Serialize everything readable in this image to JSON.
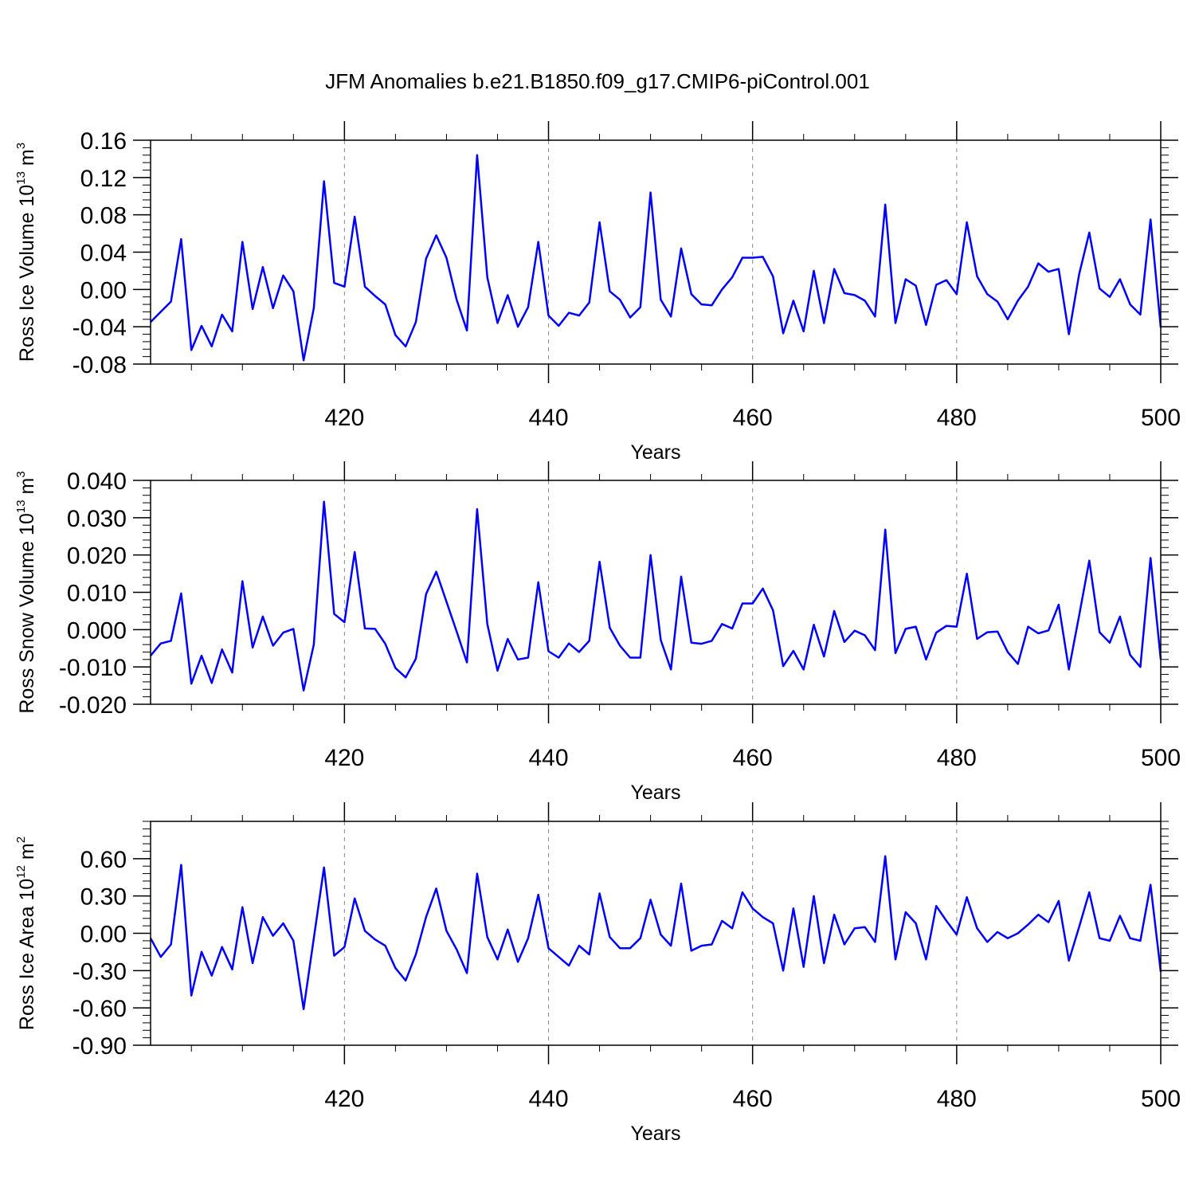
{
  "title": "JFM Anomalies b.e21.B1850.f09_g17.CMIP6-piControl.001",
  "colors": {
    "line": "#0000ff",
    "axis": "#000000",
    "grid": "#888888"
  },
  "chart_data": [
    {
      "type": "line",
      "ylabel": {
        "main": "Ross Ice Volume 10",
        "sup": "13",
        "unit": " m",
        "unit_sup": "3"
      },
      "xlabel": "Years",
      "xlim": [
        401,
        500
      ],
      "ylim": [
        -0.08,
        0.16
      ],
      "yticks": [
        -0.08,
        -0.04,
        0.0,
        0.04,
        0.08,
        0.12,
        0.16
      ],
      "ytick_labels": [
        "-0.08",
        "-0.04",
        "0.00",
        "0.04",
        "0.08",
        "0.12",
        "0.16"
      ],
      "xticks": [
        420,
        440,
        460,
        480,
        500
      ],
      "xtick_labels": [
        "420",
        "440",
        "460",
        "480",
        "500"
      ],
      "x": [
        401,
        402,
        403,
        404,
        405,
        406,
        407,
        408,
        409,
        410,
        411,
        412,
        413,
        414,
        415,
        416,
        417,
        418,
        419,
        420,
        421,
        422,
        423,
        424,
        425,
        426,
        427,
        428,
        429,
        430,
        431,
        432,
        433,
        434,
        435,
        436,
        437,
        438,
        439,
        440,
        441,
        442,
        443,
        444,
        445,
        446,
        447,
        448,
        449,
        450,
        451,
        452,
        453,
        454,
        455,
        456,
        457,
        458,
        459,
        460,
        461,
        462,
        463,
        464,
        465,
        466,
        467,
        468,
        469,
        470,
        471,
        472,
        473,
        474,
        475,
        476,
        477,
        478,
        479,
        480,
        481,
        482,
        483,
        484,
        485,
        486,
        487,
        488,
        489,
        490,
        491,
        492,
        493,
        494,
        495,
        496,
        497,
        498,
        499,
        500
      ],
      "values": [
        -0.035,
        -0.024,
        -0.013,
        0.054,
        -0.065,
        -0.039,
        -0.061,
        -0.027,
        -0.045,
        0.051,
        -0.021,
        0.024,
        -0.02,
        0.015,
        -0.002,
        -0.076,
        -0.02,
        0.116,
        0.007,
        0.003,
        0.078,
        0.003,
        -0.007,
        -0.016,
        -0.049,
        -0.061,
        -0.035,
        0.033,
        0.058,
        0.034,
        -0.011,
        -0.044,
        0.144,
        0.013,
        -0.036,
        -0.006,
        -0.04,
        -0.019,
        0.051,
        -0.028,
        -0.039,
        -0.025,
        -0.028,
        -0.014,
        0.072,
        -0.002,
        -0.011,
        -0.03,
        -0.019,
        0.104,
        -0.011,
        -0.029,
        0.044,
        -0.005,
        -0.016,
        -0.017,
        0.0,
        0.013,
        0.034,
        0.034,
        0.035,
        0.014,
        -0.047,
        -0.012,
        -0.045,
        0.02,
        -0.036,
        0.022,
        -0.004,
        -0.006,
        -0.012,
        -0.029,
        0.091,
        -0.036,
        0.011,
        0.004,
        -0.038,
        0.005,
        0.01,
        -0.005,
        0.072,
        0.014,
        -0.005,
        -0.013,
        -0.032,
        -0.012,
        0.003,
        0.028,
        0.019,
        0.022,
        -0.048,
        0.016,
        0.061,
        0.001,
        -0.008,
        0.011,
        -0.016,
        -0.027,
        0.075,
        -0.041
      ]
    },
    {
      "type": "line",
      "ylabel": {
        "main": "Ross Snow Volume 10",
        "sup": "13",
        "unit": " m",
        "unit_sup": "3"
      },
      "xlabel": "Years",
      "xlim": [
        401,
        500
      ],
      "ylim": [
        -0.02,
        0.04
      ],
      "yticks": [
        -0.02,
        -0.01,
        0.0,
        0.01,
        0.02,
        0.03,
        0.04
      ],
      "ytick_labels": [
        "-0.020",
        "-0.010",
        "0.000",
        "0.010",
        "0.020",
        "0.030",
        "0.040"
      ],
      "xticks": [
        420,
        440,
        460,
        480,
        500
      ],
      "xtick_labels": [
        "420",
        "440",
        "460",
        "480",
        "500"
      ],
      "x": [
        401,
        402,
        403,
        404,
        405,
        406,
        407,
        408,
        409,
        410,
        411,
        412,
        413,
        414,
        415,
        416,
        417,
        418,
        419,
        420,
        421,
        422,
        423,
        424,
        425,
        426,
        427,
        428,
        429,
        430,
        431,
        432,
        433,
        434,
        435,
        436,
        437,
        438,
        439,
        440,
        441,
        442,
        443,
        444,
        445,
        446,
        447,
        448,
        449,
        450,
        451,
        452,
        453,
        454,
        455,
        456,
        457,
        458,
        459,
        460,
        461,
        462,
        463,
        464,
        465,
        466,
        467,
        468,
        469,
        470,
        471,
        472,
        473,
        474,
        475,
        476,
        477,
        478,
        479,
        480,
        481,
        482,
        483,
        484,
        485,
        486,
        487,
        488,
        489,
        490,
        491,
        492,
        493,
        494,
        495,
        496,
        497,
        498,
        499,
        500
      ],
      "values": [
        -0.007,
        -0.0037,
        -0.003,
        0.0097,
        -0.0145,
        -0.007,
        -0.0143,
        -0.0053,
        -0.0115,
        0.013,
        -0.0048,
        0.0035,
        -0.0043,
        -0.0008,
        0.0002,
        -0.0163,
        -0.004,
        0.0343,
        0.0042,
        0.002,
        0.0208,
        0.0003,
        0.0002,
        -0.0038,
        -0.0103,
        -0.0128,
        -0.0078,
        0.0095,
        0.0155,
        0.0075,
        -0.0005,
        -0.0088,
        0.0323,
        0.0015,
        -0.011,
        -0.0025,
        -0.008,
        -0.0075,
        0.0127,
        -0.0058,
        -0.0075,
        -0.0037,
        -0.006,
        -0.003,
        0.0182,
        0.0005,
        -0.0043,
        -0.0075,
        -0.0075,
        0.02,
        -0.0028,
        -0.0107,
        0.0142,
        -0.0035,
        -0.0038,
        -0.003,
        0.0015,
        0.0003,
        0.007,
        0.007,
        0.011,
        0.0052,
        -0.0098,
        -0.0057,
        -0.0107,
        0.0013,
        -0.0072,
        0.005,
        -0.0033,
        -0.0003,
        -0.0015,
        -0.0055,
        0.0268,
        -0.0063,
        0.0002,
        0.0008,
        -0.008,
        -0.0008,
        0.001,
        0.0008,
        0.015,
        -0.0025,
        -0.0007,
        -0.0005,
        -0.006,
        -0.0092,
        0.0008,
        -0.001,
        -0.0002,
        0.0067,
        -0.0107,
        0.0037,
        0.0185,
        -0.0007,
        -0.0035,
        0.0035,
        -0.0068,
        -0.01,
        0.0192,
        -0.008
      ]
    },
    {
      "type": "line",
      "ylabel": {
        "main": "Ross Ice Area 10",
        "sup": "12",
        "unit": " m",
        "unit_sup": "2"
      },
      "xlabel": "Years",
      "xlim": [
        401,
        500
      ],
      "ylim": [
        -0.9,
        0.9
      ],
      "yticks": [
        -0.9,
        -0.6,
        -0.3,
        0.0,
        0.3,
        0.6
      ],
      "ytick_labels": [
        "-0.90",
        "-0.60",
        "-0.30",
        "0.00",
        "0.30",
        "0.60"
      ],
      "xticks": [
        420,
        440,
        460,
        480,
        500
      ],
      "xtick_labels": [
        "420",
        "440",
        "460",
        "480",
        "500"
      ],
      "x": [
        401,
        402,
        403,
        404,
        405,
        406,
        407,
        408,
        409,
        410,
        411,
        412,
        413,
        414,
        415,
        416,
        417,
        418,
        419,
        420,
        421,
        422,
        423,
        424,
        425,
        426,
        427,
        428,
        429,
        430,
        431,
        432,
        433,
        434,
        435,
        436,
        437,
        438,
        439,
        440,
        441,
        442,
        443,
        444,
        445,
        446,
        447,
        448,
        449,
        450,
        451,
        452,
        453,
        454,
        455,
        456,
        457,
        458,
        459,
        460,
        461,
        462,
        463,
        464,
        465,
        466,
        467,
        468,
        469,
        470,
        471,
        472,
        473,
        474,
        475,
        476,
        477,
        478,
        479,
        480,
        481,
        482,
        483,
        484,
        485,
        486,
        487,
        488,
        489,
        490,
        491,
        492,
        493,
        494,
        495,
        496,
        497,
        498,
        499,
        500
      ],
      "values": [
        -0.04,
        -0.19,
        -0.09,
        0.55,
        -0.5,
        -0.15,
        -0.34,
        -0.11,
        -0.29,
        0.21,
        -0.24,
        0.13,
        -0.02,
        0.08,
        -0.06,
        -0.61,
        -0.04,
        0.53,
        -0.18,
        -0.11,
        0.28,
        0.02,
        -0.05,
        -0.1,
        -0.28,
        -0.38,
        -0.17,
        0.13,
        0.36,
        0.02,
        -0.13,
        -0.32,
        0.48,
        -0.03,
        -0.21,
        0.03,
        -0.23,
        -0.04,
        0.31,
        -0.12,
        -0.19,
        -0.26,
        -0.1,
        -0.17,
        0.32,
        -0.03,
        -0.12,
        -0.12,
        -0.04,
        0.27,
        -0.01,
        -0.1,
        0.4,
        -0.14,
        -0.1,
        -0.09,
        0.1,
        0.04,
        0.33,
        0.2,
        0.13,
        0.08,
        -0.3,
        0.2,
        -0.27,
        0.3,
        -0.24,
        0.15,
        -0.09,
        0.04,
        0.05,
        -0.07,
        0.62,
        -0.21,
        0.17,
        0.08,
        -0.21,
        0.22,
        0.1,
        -0.01,
        0.29,
        0.04,
        -0.07,
        0.01,
        -0.04,
        0.0,
        0.07,
        0.15,
        0.09,
        0.26,
        -0.22,
        0.05,
        0.33,
        -0.04,
        -0.06,
        0.14,
        -0.04,
        -0.06,
        0.39,
        -0.31
      ]
    }
  ]
}
